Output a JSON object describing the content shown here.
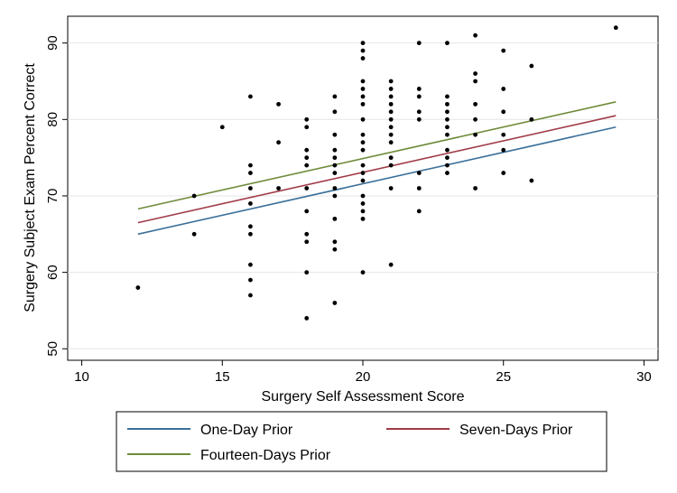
{
  "chart_data": {
    "type": "scatter",
    "title": "",
    "xlabel": "Surgery Self Assessment Score",
    "ylabel": "Surgery Subject Exam Percent Correct",
    "xlim": [
      9.5,
      30.5
    ],
    "ylim": [
      48.5,
      93.5
    ],
    "xticks": [
      10,
      15,
      20,
      25,
      30
    ],
    "yticks": [
      50,
      60,
      70,
      80,
      90
    ],
    "grid": "horizontal",
    "points": [
      [
        12,
        58
      ],
      [
        14,
        70
      ],
      [
        14,
        65
      ],
      [
        15,
        79
      ],
      [
        16,
        83
      ],
      [
        16,
        74
      ],
      [
        16,
        73
      ],
      [
        16,
        71
      ],
      [
        16,
        69
      ],
      [
        16,
        66
      ],
      [
        16,
        65
      ],
      [
        16,
        61
      ],
      [
        16,
        59
      ],
      [
        16,
        57
      ],
      [
        17,
        82
      ],
      [
        17,
        77
      ],
      [
        17,
        71
      ],
      [
        18,
        80
      ],
      [
        18,
        79
      ],
      [
        18,
        76
      ],
      [
        18,
        75
      ],
      [
        18,
        74
      ],
      [
        18,
        71
      ],
      [
        18,
        68
      ],
      [
        18,
        65
      ],
      [
        18,
        64
      ],
      [
        18,
        60
      ],
      [
        18,
        54
      ],
      [
        19,
        83
      ],
      [
        19,
        81
      ],
      [
        19,
        78
      ],
      [
        19,
        76
      ],
      [
        19,
        75
      ],
      [
        19,
        74
      ],
      [
        19,
        73
      ],
      [
        19,
        71
      ],
      [
        19,
        70
      ],
      [
        19,
        67
      ],
      [
        19,
        64
      ],
      [
        19,
        63
      ],
      [
        19,
        56
      ],
      [
        20,
        90
      ],
      [
        20,
        89
      ],
      [
        20,
        88
      ],
      [
        20,
        85
      ],
      [
        20,
        84
      ],
      [
        20,
        83
      ],
      [
        20,
        82
      ],
      [
        20,
        80
      ],
      [
        20,
        78
      ],
      [
        20,
        77
      ],
      [
        20,
        76
      ],
      [
        20,
        74
      ],
      [
        20,
        73
      ],
      [
        20,
        72
      ],
      [
        20,
        70
      ],
      [
        20,
        69
      ],
      [
        20,
        68
      ],
      [
        20,
        67
      ],
      [
        20,
        60
      ],
      [
        21,
        85
      ],
      [
        21,
        84
      ],
      [
        21,
        83
      ],
      [
        21,
        82
      ],
      [
        21,
        81
      ],
      [
        21,
        80
      ],
      [
        21,
        79
      ],
      [
        21,
        78
      ],
      [
        21,
        77
      ],
      [
        21,
        75
      ],
      [
        21,
        74
      ],
      [
        21,
        71
      ],
      [
        21,
        61
      ],
      [
        22,
        90
      ],
      [
        22,
        84
      ],
      [
        22,
        83
      ],
      [
        22,
        81
      ],
      [
        22,
        80
      ],
      [
        22,
        73
      ],
      [
        22,
        71
      ],
      [
        22,
        68
      ],
      [
        23,
        90
      ],
      [
        23,
        83
      ],
      [
        23,
        82
      ],
      [
        23,
        81
      ],
      [
        23,
        80
      ],
      [
        23,
        79
      ],
      [
        23,
        78
      ],
      [
        23,
        76
      ],
      [
        23,
        75
      ],
      [
        23,
        74
      ],
      [
        23,
        73
      ],
      [
        24,
        91
      ],
      [
        24,
        86
      ],
      [
        24,
        85
      ],
      [
        24,
        82
      ],
      [
        24,
        80
      ],
      [
        24,
        78
      ],
      [
        24,
        71
      ],
      [
        25,
        89
      ],
      [
        25,
        84
      ],
      [
        25,
        81
      ],
      [
        25,
        78
      ],
      [
        25,
        76
      ],
      [
        25,
        73
      ],
      [
        26,
        87
      ],
      [
        26,
        80
      ],
      [
        26,
        72
      ],
      [
        29,
        92
      ]
    ],
    "series": [
      {
        "name": "One-Day Prior",
        "color": "#3a6f99",
        "x": [
          12,
          29
        ],
        "y": [
          65.0,
          79.0
        ]
      },
      {
        "name": "Seven-Days Prior",
        "color": "#a13b48",
        "x": [
          12,
          29
        ],
        "y": [
          66.5,
          80.5
        ]
      },
      {
        "name": "Fourteen-Days Prior",
        "color": "#6f8c3a",
        "x": [
          12,
          29
        ],
        "y": [
          68.3,
          82.3
        ]
      }
    ],
    "legend_position": "bottom"
  }
}
